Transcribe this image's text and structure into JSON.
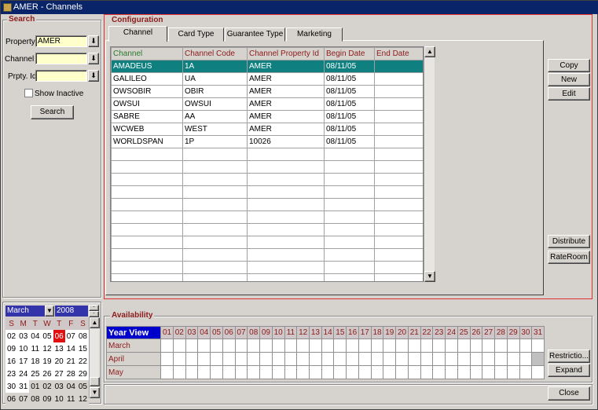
{
  "window": {
    "title": "AMER - Channels"
  },
  "search": {
    "title": "Search",
    "property_label": "Property",
    "property_value": "AMER",
    "channel_label": "Channel",
    "channel_value": "",
    "prpty_label": "Prpty. Id",
    "prpty_value": "",
    "show_inactive_label": "Show Inactive",
    "show_inactive_checked": false,
    "search_button": "Search"
  },
  "config": {
    "title": "Configuration",
    "tabs": [
      {
        "label": "Channel",
        "active": true
      },
      {
        "label": "Card Type"
      },
      {
        "label": "Guarantee Type"
      },
      {
        "label": "Marketing"
      }
    ],
    "columns": [
      "Channel",
      "Channel Code",
      "Channel Property Id",
      "Begin Date",
      "End Date"
    ],
    "rows": [
      [
        "AMADEUS",
        "1A",
        "AMER",
        "08/11/05",
        ""
      ],
      [
        "GALILEO",
        "UA",
        "AMER",
        "08/11/05",
        ""
      ],
      [
        "OWSOBIR",
        "OBIR",
        "AMER",
        "08/11/05",
        ""
      ],
      [
        "OWSUI",
        "OWSUI",
        "AMER",
        "08/11/05",
        ""
      ],
      [
        "SABRE",
        "AA",
        "AMER",
        "08/11/05",
        ""
      ],
      [
        "WCWEB",
        "WEST",
        "AMER",
        "08/11/05",
        ""
      ],
      [
        "WORLDSPAN",
        "1P",
        "10026",
        "08/11/05",
        ""
      ]
    ],
    "buttons": {
      "copy": "Copy",
      "new": "New",
      "edit": "Edit",
      "distribute": "Distribute",
      "rateroom": "RateRoom"
    }
  },
  "calendar": {
    "month": "March",
    "year": "2008",
    "weekdays": [
      "S",
      "M",
      "T",
      "W",
      "T",
      "F",
      "S"
    ],
    "today": "06",
    "weeks": [
      [
        "02",
        "03",
        "04",
        "05",
        "06",
        "07",
        "08"
      ],
      [
        "09",
        "10",
        "11",
        "12",
        "13",
        "14",
        "15"
      ],
      [
        "16",
        "17",
        "18",
        "19",
        "20",
        "21",
        "22"
      ],
      [
        "23",
        "24",
        "25",
        "26",
        "27",
        "28",
        "29"
      ],
      [
        "30",
        "31",
        "01",
        "02",
        "03",
        "04",
        "05"
      ],
      [
        "06",
        "07",
        "08",
        "09",
        "10",
        "11",
        "12"
      ]
    ]
  },
  "availability": {
    "title": "Availability",
    "header": "Year View",
    "months": [
      "March",
      "April",
      "May"
    ],
    "days": [
      "01",
      "02",
      "03",
      "04",
      "05",
      "06",
      "07",
      "08",
      "09",
      "10",
      "11",
      "12",
      "13",
      "14",
      "15",
      "16",
      "17",
      "18",
      "19",
      "20",
      "21",
      "22",
      "23",
      "24",
      "25",
      "26",
      "27",
      "28",
      "29",
      "30",
      "31"
    ],
    "buttons": {
      "restrictions": "Restrictio...",
      "expand": "Expand",
      "close": "Close"
    }
  },
  "colors": {
    "title_bar": "#0a246a",
    "selection": "#0f7f7f",
    "group_label": "#8b1a1a",
    "field_bg": "#ffffcc",
    "today": "#e01010",
    "focus_border": "#e03030"
  }
}
